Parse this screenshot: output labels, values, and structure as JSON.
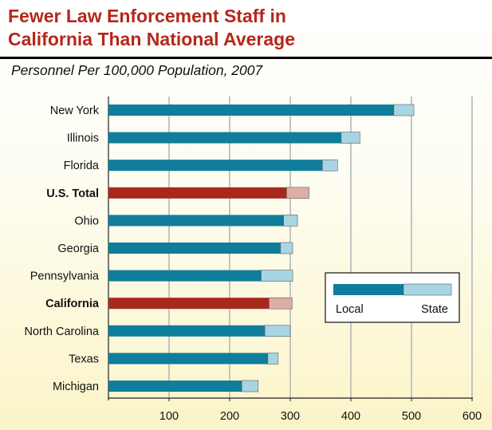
{
  "chart_data": {
    "type": "bar",
    "orientation": "horizontal",
    "stacked": true,
    "title_line1": "Fewer Law Enforcement Staff in",
    "title_line2": "California Than National Average",
    "subtitle": "Personnel Per 100,000 Population, 2007",
    "categories": [
      "New York",
      "Illinois",
      "Florida",
      "U.S. Total",
      "Ohio",
      "Georgia",
      "Pennsylvania",
      "California",
      "North Carolina",
      "Texas",
      "Michigan"
    ],
    "highlighted": [
      "U.S. Total",
      "California"
    ],
    "series": [
      {
        "name": "Local",
        "values": [
          471,
          384,
          353,
          294,
          289,
          284,
          252,
          265,
          258,
          263,
          220
        ]
      },
      {
        "name": "State",
        "values": [
          33,
          31,
          25,
          37,
          23,
          20,
          52,
          38,
          42,
          17,
          27
        ]
      }
    ],
    "xlim": [
      0,
      600
    ],
    "xticks": [
      100,
      200,
      300,
      400,
      500,
      600
    ],
    "xlabel": "",
    "ylabel": "",
    "grid": true,
    "legend_position": "right"
  },
  "legend": {
    "local_label": "Local",
    "state_label": "State"
  },
  "colors": {
    "title": "#b5271c",
    "local": "#0f7d9c",
    "state": "#a8d5e4",
    "highlight_local": "#a8281e",
    "highlight_state": "#ddaea5",
    "grid": "#c4c4c4"
  }
}
